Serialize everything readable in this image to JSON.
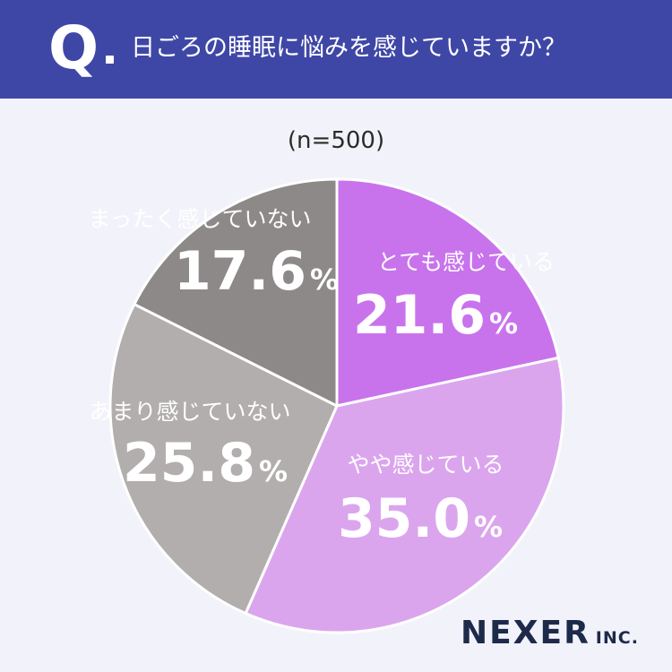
{
  "header": {
    "q_label": "Q",
    "question": "日ごろの睡眠に悩みを感じていますか？"
  },
  "sample_size": "(n=500)",
  "brand": {
    "name": "NEXER",
    "suffix": "INC."
  },
  "colors": {
    "header_bg": "#3f47a6",
    "background": "#f2f2fa",
    "slice_1": "#c873ec",
    "slice_2": "#dba5ee",
    "slice_3": "#b3aeae",
    "slice_4": "#8e8989"
  },
  "chart_data": {
    "type": "pie",
    "categories": [
      "とても感じている",
      "やや感じている",
      "あまり感じていない",
      "まったく感じていない"
    ],
    "values": [
      21.6,
      35.0,
      25.8,
      17.6
    ],
    "value_labels": [
      "21.6",
      "35.0",
      "25.8",
      "17.6"
    ],
    "unit": "%",
    "start": "12 o'clock",
    "direction": "clockwise",
    "legend": "none"
  }
}
